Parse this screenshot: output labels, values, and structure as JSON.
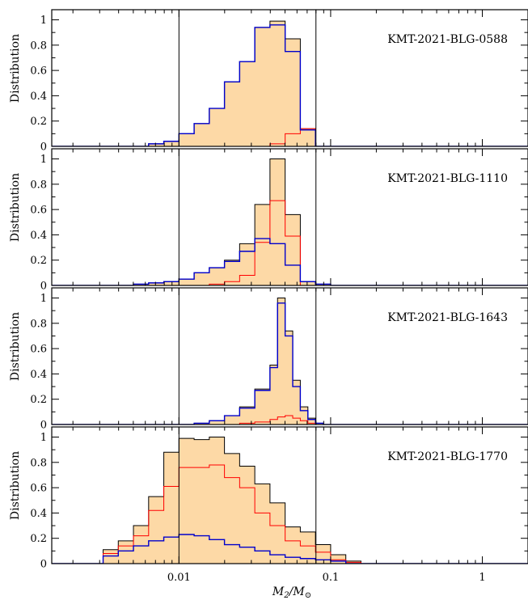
{
  "figure": {
    "xlabel": "M",
    "xlabel_sub": "2",
    "xlabel_den": "/M",
    "xlabel_den_sub": "⊙",
    "x_tick_labels": [
      "0.01",
      "0.1",
      "1"
    ],
    "y_tick_labels": [
      "0",
      "0.2",
      "0.4",
      "0.6",
      "0.8",
      "1"
    ],
    "colors": {
      "fill": "#fdd9a6",
      "total": "#000000",
      "red": "#ff0000",
      "blue": "#0000cc"
    }
  },
  "chart_data": [
    {
      "type": "histogram",
      "label": "KMT-2021-BLG-0588",
      "ylabel": "Distribution",
      "xscale": "log",
      "xlim": [
        0.00145,
        2.0
      ],
      "ylim": [
        0,
        1.08
      ],
      "vlines": [
        0.01,
        0.08
      ],
      "bin_edges_log10": [
        -3.0,
        -2.2,
        -2.1,
        -2.0,
        -1.9,
        -1.8,
        -1.7,
        -1.6,
        -1.5,
        -1.4,
        -1.3,
        -1.2,
        -1.1,
        -1.0,
        -0.9,
        0.3
      ],
      "series": [
        {
          "name": "total",
          "values": [
            0.0,
            0.02,
            0.04,
            0.1,
            0.18,
            0.3,
            0.51,
            0.67,
            0.94,
            0.99,
            0.85,
            0.14,
            0.0,
            0.0,
            0.0
          ]
        },
        {
          "name": "red",
          "values": [
            0.0,
            0.0,
            0.0,
            0.0,
            0.0,
            0.0,
            0.0,
            0.0,
            0.0,
            0.02,
            0.1,
            0.14,
            0.0,
            0.0,
            0.0
          ]
        },
        {
          "name": "blue",
          "values": [
            0.0,
            0.02,
            0.04,
            0.1,
            0.18,
            0.3,
            0.51,
            0.67,
            0.94,
            0.96,
            0.75,
            0.13,
            0.0,
            0.0,
            0.0
          ]
        }
      ]
    },
    {
      "type": "histogram",
      "label": "KMT-2021-BLG-1110",
      "ylabel": "Distribution",
      "xscale": "log",
      "xlim": [
        0.00145,
        2.0
      ],
      "ylim": [
        0,
        1.08
      ],
      "vlines": [
        0.01,
        0.08
      ],
      "bin_edges_log10": [
        -3.0,
        -2.3,
        -2.2,
        -2.1,
        -2.0,
        -1.9,
        -1.8,
        -1.7,
        -1.6,
        -1.5,
        -1.4,
        -1.3,
        -1.2,
        -1.1,
        -1.0,
        -0.9,
        0.3
      ],
      "series": [
        {
          "name": "total",
          "values": [
            0.0,
            0.01,
            0.02,
            0.03,
            0.05,
            0.1,
            0.14,
            0.2,
            0.33,
            0.64,
            1.0,
            0.56,
            0.03,
            0.01,
            0.0,
            0.0
          ]
        },
        {
          "name": "red",
          "values": [
            0.0,
            0.0,
            0.0,
            0.0,
            0.0,
            0.0,
            0.01,
            0.03,
            0.08,
            0.34,
            0.67,
            0.39,
            0.0,
            0.0,
            0.0,
            0.0
          ]
        },
        {
          "name": "blue",
          "values": [
            0.0,
            0.01,
            0.02,
            0.03,
            0.05,
            0.1,
            0.14,
            0.19,
            0.27,
            0.37,
            0.33,
            0.16,
            0.03,
            0.01,
            0.0,
            0.0
          ]
        }
      ]
    },
    {
      "type": "histogram",
      "label": "KMT-2021-BLG-1643",
      "ylabel": "Distribution",
      "xscale": "log",
      "xlim": [
        0.00145,
        2.0
      ],
      "ylim": [
        0,
        1.08
      ],
      "vlines": [
        0.01,
        0.08
      ],
      "bin_edges_log10": [
        -3.0,
        -2.0,
        -1.9,
        -1.8,
        -1.7,
        -1.6,
        -1.5,
        -1.4,
        -1.35,
        -1.3,
        -1.25,
        -1.2,
        -1.15,
        -1.1,
        -1.05,
        0.3
      ],
      "series": [
        {
          "name": "total",
          "values": [
            0.0,
            0.0,
            0.01,
            0.03,
            0.07,
            0.14,
            0.28,
            0.47,
            1.0,
            0.74,
            0.35,
            0.14,
            0.05,
            0.01,
            0.0
          ]
        },
        {
          "name": "red",
          "values": [
            0.0,
            0.0,
            0.0,
            0.0,
            0.0,
            0.01,
            0.02,
            0.04,
            0.06,
            0.07,
            0.05,
            0.03,
            0.01,
            0.0,
            0.0
          ]
        },
        {
          "name": "blue",
          "values": [
            0.0,
            0.0,
            0.01,
            0.03,
            0.07,
            0.13,
            0.27,
            0.45,
            0.96,
            0.7,
            0.3,
            0.11,
            0.04,
            0.01,
            0.0
          ]
        }
      ]
    },
    {
      "type": "histogram",
      "label": "KMT-2021-BLG-1770",
      "ylabel": "Distribution",
      "xscale": "log",
      "xlim": [
        0.00145,
        2.0
      ],
      "ylim": [
        0,
        1.08
      ],
      "vlines": [
        0.01,
        0.08
      ],
      "bin_edges_log10": [
        -3.0,
        -2.5,
        -2.4,
        -2.3,
        -2.2,
        -2.1,
        -2.0,
        -1.9,
        -1.8,
        -1.7,
        -1.6,
        -1.5,
        -1.4,
        -1.3,
        -1.2,
        -1.1,
        -1.0,
        -0.9,
        -0.8,
        -0.7,
        0.3
      ],
      "series": [
        {
          "name": "total",
          "values": [
            0.0,
            0.11,
            0.18,
            0.3,
            0.53,
            0.88,
            0.99,
            0.98,
            1.0,
            0.87,
            0.77,
            0.63,
            0.48,
            0.29,
            0.25,
            0.15,
            0.07,
            0.02,
            0.0,
            0.0
          ]
        },
        {
          "name": "red",
          "values": [
            0.0,
            0.08,
            0.14,
            0.22,
            0.42,
            0.61,
            0.76,
            0.76,
            0.78,
            0.68,
            0.6,
            0.4,
            0.3,
            0.18,
            0.14,
            0.09,
            0.03,
            0.01,
            0.0,
            0.0
          ]
        },
        {
          "name": "blue",
          "values": [
            0.0,
            0.06,
            0.1,
            0.14,
            0.18,
            0.21,
            0.23,
            0.22,
            0.19,
            0.15,
            0.13,
            0.1,
            0.07,
            0.05,
            0.04,
            0.03,
            0.02,
            0.0,
            0.0,
            0.0
          ]
        }
      ]
    }
  ]
}
